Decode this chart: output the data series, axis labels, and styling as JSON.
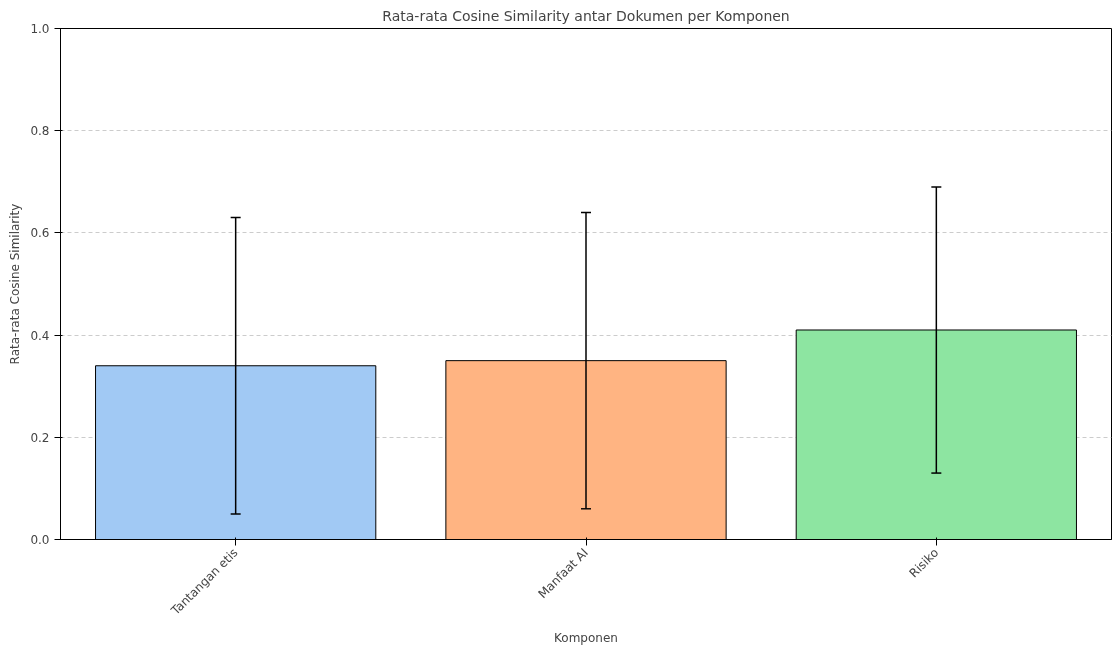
{
  "chart_data": {
    "type": "bar",
    "title": "Rata-rata Cosine Similarity antar Dokumen per Komponen",
    "xlabel": "Komponen",
    "ylabel": "Rata-rata Cosine Similarity",
    "categories": [
      "Tantangan etis",
      "Manfaat AI",
      "Risiko"
    ],
    "values": [
      0.34,
      0.35,
      0.41
    ],
    "errors": [
      0.29,
      0.29,
      0.28
    ],
    "colors": [
      "#a1c9f4",
      "#ffb482",
      "#8de5a1"
    ],
    "ylim": [
      0,
      1.0
    ],
    "yticks": [
      {
        "value": 0,
        "label": "0.0"
      },
      {
        "value": 0.2,
        "label": "0.2"
      },
      {
        "value": 0.4,
        "label": "0.4"
      },
      {
        "value": 0.6,
        "label": "0.6"
      },
      {
        "value": 0.8,
        "label": "0.8"
      },
      {
        "value": 1.0,
        "label": "1.0"
      }
    ],
    "grid": "y"
  }
}
